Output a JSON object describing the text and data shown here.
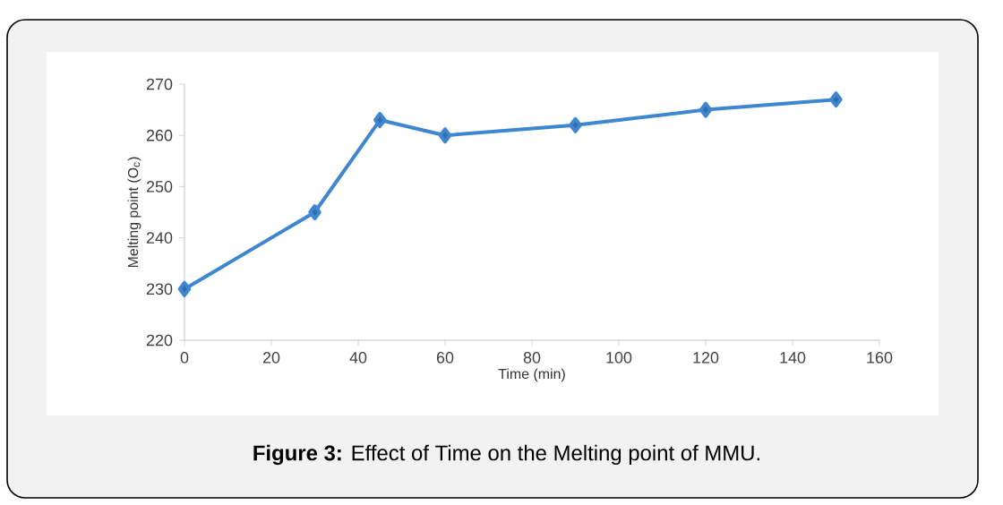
{
  "chart_data": {
    "type": "line",
    "xlabel": "Time (min)",
    "ylabel": "Melting point (O$_{c}$)",
    "x": [
      0,
      30,
      45,
      60,
      90,
      120,
      150
    ],
    "values": [
      230,
      245,
      263,
      260,
      262,
      265,
      267
    ],
    "color": "#3f86d0",
    "marker": "diamond",
    "line_style": "solid",
    "xlim": [
      0,
      160
    ],
    "xticks": [
      0,
      20,
      40,
      60,
      80,
      100,
      120,
      140,
      160
    ],
    "ylim": [
      220,
      270
    ],
    "yticks": [
      220,
      230,
      240,
      250,
      260,
      270
    ],
    "annotations": [
      "**Figure 3:** Effect of Time on the Melting point of MMU."
    ]
  }
}
